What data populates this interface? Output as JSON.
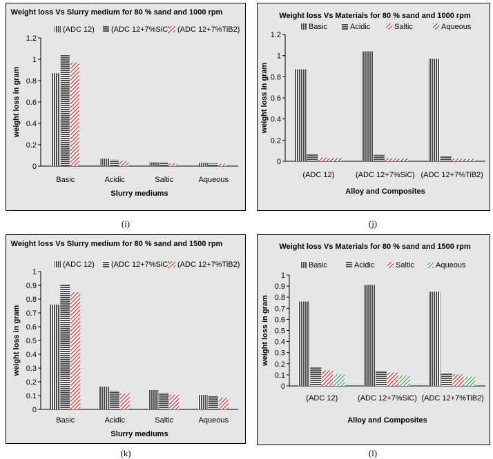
{
  "captions": [
    "(i)",
    "(j)",
    "(k)",
    "(l)"
  ],
  "chart_data": [
    {
      "type": "bar",
      "title": "Weight loss Vs Slurry medium for  80 % sand and 1000 rpm",
      "xlabel": "Slurry mediums",
      "ylabel": "weight loss in gram",
      "ylim": [
        0,
        1.2
      ],
      "yticks": [
        "0",
        "0.2",
        "0.4",
        "0.6",
        "0.8",
        "1",
        "1.2"
      ],
      "categories": [
        "Basic",
        "Acidic",
        "Saltic",
        "Aqueous"
      ],
      "series": [
        {
          "name": "(ADC 12)",
          "values": [
            0.87,
            0.07,
            0.035,
            0.03
          ]
        },
        {
          "name": "(ADC 12+7%SiC)",
          "values": [
            1.04,
            0.06,
            0.03,
            0.025
          ]
        },
        {
          "name": "(ADC 12+7%TiB2)",
          "values": [
            0.97,
            0.05,
            0.025,
            0.022
          ]
        }
      ]
    },
    {
      "type": "bar",
      "title": "Weight loss Vs  Materials for 80 % sand and 1000 rpm",
      "xlabel": "Alloy and Composites",
      "ylabel": "weight loss in gram",
      "ylim": [
        0,
        1.2
      ],
      "yticks": [
        "0",
        "0.2",
        "0.4",
        "0.6",
        "0.8",
        "1",
        "1.2"
      ],
      "categories": [
        "(ADC 12)",
        "(ADC 12+7%SiC)",
        "(ADC 12+7%TiB2)"
      ],
      "series": [
        {
          "name": "Basic",
          "values": [
            0.87,
            1.04,
            0.97
          ]
        },
        {
          "name": "Acidic",
          "values": [
            0.07,
            0.06,
            0.05
          ]
        },
        {
          "name": "Saltic",
          "values": [
            0.035,
            0.03,
            0.025
          ]
        },
        {
          "name": "Aqueous",
          "values": [
            0.03,
            0.025,
            0.022
          ]
        }
      ]
    },
    {
      "type": "bar",
      "title": "Weight loss Vs Slurry medium for  80 % sand and 1500 rpm",
      "xlabel": "Slurry mediums",
      "ylabel": "weight loss in gram",
      "ylim": [
        0,
        1
      ],
      "yticks": [
        "0",
        "0.1",
        "0.2",
        "0.3",
        "0.4",
        "0.5",
        "0.6",
        "0.7",
        "0.8",
        "0.9",
        "1"
      ],
      "categories": [
        "Basic",
        "Acidic",
        "Saltic",
        "Aqueous"
      ],
      "series": [
        {
          "name": "(ADC 12)",
          "values": [
            0.76,
            0.165,
            0.14,
            0.105
          ]
        },
        {
          "name": "(ADC 12+7%SiC)",
          "values": [
            0.91,
            0.135,
            0.12,
            0.095
          ]
        },
        {
          "name": "(ADC 12+7%TiB2)",
          "values": [
            0.85,
            0.115,
            0.105,
            0.085
          ]
        }
      ]
    },
    {
      "type": "bar",
      "title": "Weight loss Vs  Materials for 80 % sand and 1500 rpm",
      "xlabel": "Alloy and Composites",
      "ylabel": "weight loss in gram",
      "ylim": [
        0,
        1
      ],
      "yticks": [
        "0",
        "0.1",
        "0.2",
        "0.3",
        "0.4",
        "0.5",
        "0.6",
        "0.7",
        "0.8",
        "0.9",
        "1"
      ],
      "categories": [
        "(ADC 12)",
        "(ADC 12+7%SiC)",
        "(ADC 12+7%TiB2)"
      ],
      "series": [
        {
          "name": "Basic",
          "values": [
            0.76,
            0.91,
            0.85
          ]
        },
        {
          "name": "Acidic",
          "values": [
            0.165,
            0.135,
            0.115
          ]
        },
        {
          "name": "Saltic",
          "values": [
            0.14,
            0.12,
            0.105
          ]
        },
        {
          "name": "Aqueous",
          "values": [
            0.105,
            0.095,
            0.085
          ]
        }
      ]
    }
  ],
  "colors": {
    "panel_bg": "#e6e6e6",
    "black": "#000000",
    "red": "#e02020",
    "navy": "#1f3a78",
    "green": "#2ea34a",
    "white": "#ffffff"
  }
}
